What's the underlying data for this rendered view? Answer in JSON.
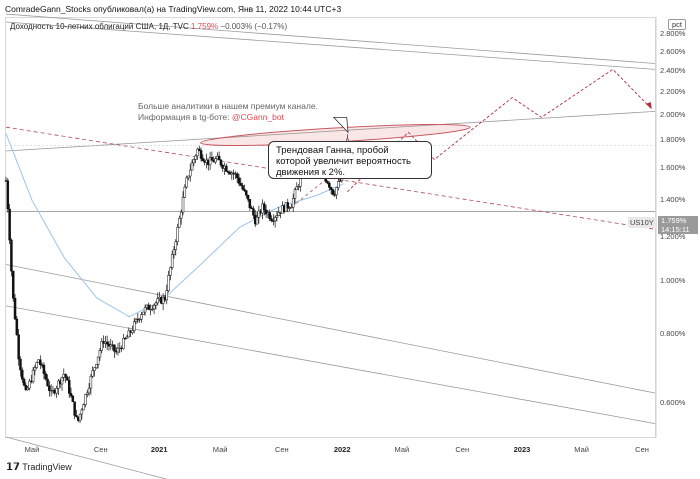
{
  "header": {
    "publisher_line": "ComradeGann_Stocks опубликовал(а) на TradingView.com, Янв 11, 2022 10:44 UTC+3"
  },
  "legend": {
    "title": "Доходность 10-летних облигаций США, 1Д, TVC",
    "last": "1.759%",
    "change": "−0.003% (−0.17%)"
  },
  "annotations": {
    "promo_line1": "Больше аналитики в нашем премиум канале.",
    "promo_line2_prefix": "Информация в tg-боте:",
    "promo_handle": "@CGann_bot",
    "callout_line1": "Трендовая Ганна, пробой",
    "callout_line2": "которой увеличит вероятность",
    "callout_line3": "движения к 2%."
  },
  "price_scale": {
    "mode_button": "pct",
    "symbol": "US10Y",
    "last_price": "1.759%",
    "countdown": "14:15:11"
  },
  "footer": {
    "brand": "TradingView"
  },
  "colors": {
    "candle": "#111111",
    "gann_line": "#9a9a9a",
    "dashed_trend": "#b44a5a",
    "projection": "#b0303f",
    "ellipse": "#c9585f",
    "ma_line": "#9ec3e6"
  },
  "chart_data": {
    "type": "line",
    "title": "Доходность 10-летних облигаций США, 1Д, TVC",
    "y_unit": "%",
    "y_scale": "log",
    "ylim": [
      0.52,
      3.0
    ],
    "y_ticks": [
      "2.800%",
      "2.600%",
      "2.400%",
      "2.200%",
      "2.000%",
      "1.800%",
      "1.600%",
      "1.400%",
      "1.200%",
      "1.000%",
      "0.800%",
      "0.600%"
    ],
    "x_ticks": [
      {
        "t": 0.04,
        "label": "Май",
        "bold": false
      },
      {
        "t": 0.146,
        "label": "Сен",
        "bold": false
      },
      {
        "t": 0.236,
        "label": "2021",
        "bold": true
      },
      {
        "t": 0.33,
        "label": "Май",
        "bold": false
      },
      {
        "t": 0.425,
        "label": "Сен",
        "bold": false
      },
      {
        "t": 0.518,
        "label": "2022",
        "bold": true
      },
      {
        "t": 0.61,
        "label": "Май",
        "bold": false
      },
      {
        "t": 0.703,
        "label": "Сен",
        "bold": false
      },
      {
        "t": 0.795,
        "label": "2023",
        "bold": true
      },
      {
        "t": 0.887,
        "label": "Май",
        "bold": false
      },
      {
        "t": 0.98,
        "label": "Сен",
        "bold": false
      }
    ],
    "price_path": [
      [
        0.0,
        1.52
      ],
      [
        0.01,
        0.95
      ],
      [
        0.02,
        0.72
      ],
      [
        0.03,
        0.62
      ],
      [
        0.05,
        0.72
      ],
      [
        0.07,
        0.62
      ],
      [
        0.09,
        0.68
      ],
      [
        0.11,
        0.55
      ],
      [
        0.13,
        0.66
      ],
      [
        0.15,
        0.78
      ],
      [
        0.17,
        0.74
      ],
      [
        0.19,
        0.8
      ],
      [
        0.21,
        0.88
      ],
      [
        0.23,
        0.91
      ],
      [
        0.245,
        0.93
      ],
      [
        0.255,
        1.08
      ],
      [
        0.265,
        1.25
      ],
      [
        0.28,
        1.55
      ],
      [
        0.295,
        1.73
      ],
      [
        0.31,
        1.64
      ],
      [
        0.325,
        1.66
      ],
      [
        0.34,
        1.6
      ],
      [
        0.355,
        1.55
      ],
      [
        0.37,
        1.42
      ],
      [
        0.385,
        1.28
      ],
      [
        0.395,
        1.36
      ],
      [
        0.41,
        1.3
      ],
      [
        0.425,
        1.35
      ],
      [
        0.44,
        1.38
      ],
      [
        0.455,
        1.55
      ],
      [
        0.47,
        1.65
      ],
      [
        0.485,
        1.58
      ],
      [
        0.495,
        1.52
      ],
      [
        0.505,
        1.44
      ],
      [
        0.515,
        1.52
      ],
      [
        0.52,
        1.7
      ],
      [
        0.526,
        1.79
      ]
    ],
    "series": [
      {
        "type": "ma",
        "points": [
          [
            0.0,
            1.85
          ],
          [
            0.04,
            1.4
          ],
          [
            0.09,
            1.1
          ],
          [
            0.14,
            0.93
          ],
          [
            0.19,
            0.86
          ],
          [
            0.24,
            0.92
          ],
          [
            0.3,
            1.07
          ],
          [
            0.36,
            1.25
          ],
          [
            0.42,
            1.36
          ],
          [
            0.48,
            1.43
          ],
          [
            0.52,
            1.5
          ]
        ]
      },
      {
        "type": "projection",
        "points": [
          [
            0.526,
            1.45
          ],
          [
            0.62,
            1.86
          ],
          [
            0.66,
            1.66
          ],
          [
            0.78,
            2.15
          ],
          [
            0.825,
            1.98
          ],
          [
            0.935,
            2.42
          ],
          [
            0.995,
            2.05
          ]
        ]
      }
    ]
  }
}
